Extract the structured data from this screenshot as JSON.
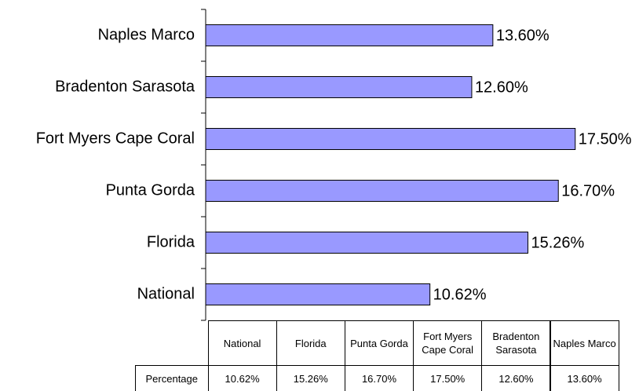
{
  "chart_data": {
    "type": "bar",
    "orientation": "horizontal",
    "categories": [
      "National",
      "Florida",
      "Punta Gorda",
      "Fort Myers Cape Coral",
      "Bradenton Sarasota",
      "Naples Marco"
    ],
    "series": [
      {
        "name": "Percentage",
        "color": "#9999ff",
        "values": [
          10.62,
          15.26,
          16.7,
          17.5,
          12.6,
          13.6
        ],
        "value_labels": [
          "10.62%",
          "15.26%",
          "16.70%",
          "17.50%",
          "12.60%",
          "13.60%"
        ]
      }
    ],
    "xlim": [
      0,
      20
    ],
    "data_table": true
  }
}
